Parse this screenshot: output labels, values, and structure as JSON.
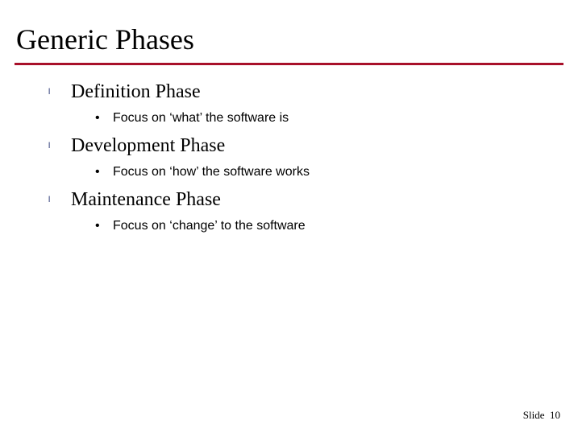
{
  "slide": {
    "title": "Generic Phases",
    "title_color": "#000000",
    "underline_color": "#a8102a",
    "bullet_color": "#1a2a6c",
    "background_color": "#ffffff",
    "phases": [
      {
        "title": "Definition Phase",
        "subpoints": [
          "Focus on ‘what’ the software is"
        ]
      },
      {
        "title": "Development Phase",
        "subpoints": [
          "Focus on ‘how’ the software works"
        ]
      },
      {
        "title": "Maintenance Phase",
        "subpoints": [
          "Focus on ‘change’ to the software"
        ]
      }
    ],
    "footer_label": "Slide",
    "footer_number": "10"
  },
  "glyphs": {
    "level1": "l",
    "level2": "•"
  }
}
